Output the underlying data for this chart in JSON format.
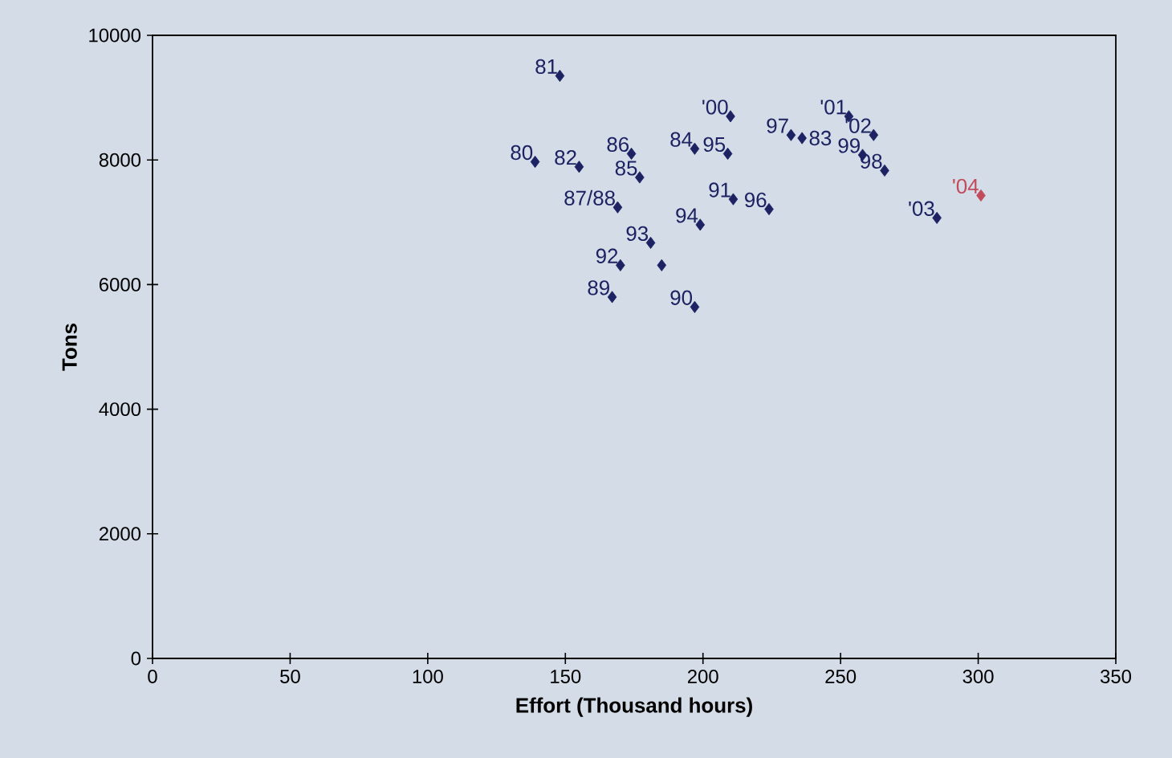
{
  "chart_data": {
    "type": "scatter",
    "xlabel": "Effort (Thousand hours)",
    "ylabel": "Tons",
    "xlim": [
      0,
      350
    ],
    "xticks": [
      0,
      50,
      100,
      150,
      200,
      250,
      300,
      350
    ],
    "ylim": [
      0,
      10000
    ],
    "yticks": [
      0,
      2000,
      4000,
      6000,
      8000,
      10000
    ],
    "marker": "diamond",
    "grid": false,
    "series": [
      {
        "x": [
          148,
          139,
          155,
          174,
          177,
          197,
          210,
          209,
          169,
          211,
          224,
          199,
          181,
          170,
          167,
          197,
          253,
          262,
          258,
          266,
          285,
          301,
          232,
          236,
          185
        ],
        "values": [
          9350,
          7970,
          7890,
          8100,
          7720,
          8180,
          8700,
          8100,
          7240,
          7370,
          7210,
          6960,
          6670,
          6310,
          5800,
          5640,
          8700,
          8400,
          8080,
          7830,
          7070,
          7430,
          8400,
          8350,
          6310
        ],
        "colors": [
          "#1c2262",
          "#1c2262",
          "#1c2262",
          "#1c2262",
          "#1c2262",
          "#1c2262",
          "#1c2262",
          "#1c2262",
          "#1c2262",
          "#1c2262",
          "#1c2262",
          "#1c2262",
          "#1c2262",
          "#1c2262",
          "#1c2262",
          "#1c2262",
          "#1c2262",
          "#1c2262",
          "#1c2262",
          "#1c2262",
          "#1c2262",
          "#c24a5a",
          "#1c2262",
          "#1c2262",
          "#1c2262"
        ]
      }
    ],
    "annotations": [
      {
        "text": "81",
        "x": 148,
        "y": 9350
      },
      {
        "text": "80",
        "x": 139,
        "y": 7970
      },
      {
        "text": "82",
        "x": 155,
        "y": 7890
      },
      {
        "text": "86",
        "x": 174,
        "y": 8100
      },
      {
        "text": "85",
        "x": 177,
        "y": 7720
      },
      {
        "text": "84",
        "x": 197,
        "y": 8180
      },
      {
        "text": "'00",
        "x": 210,
        "y": 8700
      },
      {
        "text": "95",
        "x": 209,
        "y": 8100
      },
      {
        "text": "87/88",
        "x": 169,
        "y": 7240
      },
      {
        "text": "91",
        "x": 211,
        "y": 7370
      },
      {
        "text": "96",
        "x": 224,
        "y": 7210
      },
      {
        "text": "94",
        "x": 199,
        "y": 6960
      },
      {
        "text": "93",
        "x": 181,
        "y": 6670
      },
      {
        "text": "92",
        "x": 170,
        "y": 6310
      },
      {
        "text": "89",
        "x": 167,
        "y": 5800
      },
      {
        "text": "90",
        "x": 197,
        "y": 5640
      },
      {
        "text": "'01",
        "x": 253,
        "y": 8700
      },
      {
        "text": "'02",
        "x": 262,
        "y": 8400
      },
      {
        "text": "99",
        "x": 258,
        "y": 8080
      },
      {
        "text": "98",
        "x": 266,
        "y": 7830
      },
      {
        "text": "'03",
        "x": 285,
        "y": 7070
      },
      {
        "text": "'04",
        "x": 301,
        "y": 7430
      },
      {
        "text": "97",
        "x": 232,
        "y": 8400
      },
      {
        "text": "83",
        "x": 236,
        "y": 8350
      }
    ]
  }
}
